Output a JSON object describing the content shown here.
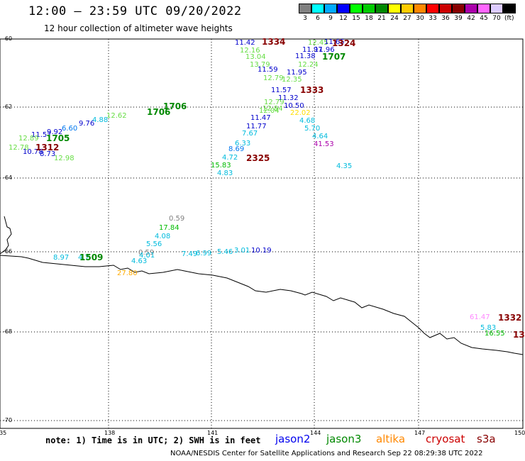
{
  "header": {
    "title": "12:00 – 23:59 UTC 09/20/2022",
    "subtitle": "12 hour collection of altimeter wave heights"
  },
  "legend": {
    "unit": "(ft)",
    "items": [
      {
        "label": "3",
        "color": "#808080"
      },
      {
        "label": "6",
        "color": "#00ffff"
      },
      {
        "label": "9",
        "color": "#00aaff"
      },
      {
        "label": "12",
        "color": "#0000ff"
      },
      {
        "label": "15",
        "color": "#00ff00"
      },
      {
        "label": "18",
        "color": "#00cc00"
      },
      {
        "label": "21",
        "color": "#008800"
      },
      {
        "label": "24",
        "color": "#ffff00"
      },
      {
        "label": "27",
        "color": "#ffcc00"
      },
      {
        "label": "30",
        "color": "#ff8800"
      },
      {
        "label": "33",
        "color": "#ff0000"
      },
      {
        "label": "36",
        "color": "#cc0000"
      },
      {
        "label": "39",
        "color": "#880000"
      },
      {
        "label": "42",
        "color": "#aa00aa"
      },
      {
        "label": "45",
        "color": "#ff66ff"
      },
      {
        "label": "70",
        "color": "#ddccff"
      },
      {
        "label": "",
        "color": "#000000"
      }
    ]
  },
  "map": {
    "lat_labels": [
      "-60",
      "-62",
      "-64",
      "-66",
      "-68",
      "-70"
    ],
    "lon_labels": [
      "135",
      "138",
      "141",
      "144",
      "147",
      "150"
    ],
    "wave_heights": [
      {
        "t": "11.42",
        "c": "#0000cc"
      },
      {
        "t": "12.16",
        "c": "#66dd44"
      },
      {
        "t": "13.04",
        "c": "#66dd44"
      },
      {
        "t": "13.79",
        "c": "#66dd44"
      },
      {
        "t": "11.59",
        "c": "#0000cc"
      },
      {
        "t": "12.79",
        "c": "#66dd44"
      },
      {
        "t": "12.35",
        "c": "#66dd44"
      },
      {
        "t": "11.95",
        "c": "#0000cc"
      },
      {
        "t": "11.38",
        "c": "#0000cc"
      },
      {
        "t": "11.97",
        "c": "#0000cc"
      },
      {
        "t": "12.24",
        "c": "#66dd44"
      },
      {
        "t": "12.45",
        "c": "#66dd44"
      },
      {
        "t": "11.96",
        "c": "#0000cc"
      },
      {
        "t": "11.65",
        "c": "#0000cc"
      },
      {
        "t": "12.84",
        "c": "#66dd44"
      },
      {
        "t": "11.57",
        "c": "#0000cc"
      },
      {
        "t": "11.32",
        "c": "#0000cc"
      },
      {
        "t": "12.79",
        "c": "#66dd44"
      },
      {
        "t": "10.50",
        "c": "#0000cc"
      },
      {
        "t": "12.04",
        "c": "#66dd44"
      },
      {
        "t": "22.02",
        "c": "#ffdd00"
      },
      {
        "t": "11.47",
        "c": "#0000cc"
      },
      {
        "t": "11.77",
        "c": "#0000cc"
      },
      {
        "t": "4.68",
        "c": "#00bbdd"
      },
      {
        "t": "5.70",
        "c": "#00bbdd"
      },
      {
        "t": "7.67",
        "c": "#00bbdd"
      },
      {
        "t": "4.64",
        "c": "#00bbdd"
      },
      {
        "t": "6.33",
        "c": "#00bbdd"
      },
      {
        "t": "41.53",
        "c": "#aa00aa"
      },
      {
        "t": "8.69",
        "c": "#0077ee"
      },
      {
        "t": "4.72",
        "c": "#00bbdd"
      },
      {
        "t": "15.83",
        "c": "#00bb00"
      },
      {
        "t": "4.83",
        "c": "#00bbdd"
      },
      {
        "t": "4.35",
        "c": "#00bbdd"
      },
      {
        "t": "12.62",
        "c": "#66dd44"
      },
      {
        "t": "9.76",
        "c": "#0000cc"
      },
      {
        "t": "4.88",
        "c": "#00bbdd"
      },
      {
        "t": "6.60",
        "c": "#0077ee"
      },
      {
        "t": "9.92",
        "c": "#0000cc"
      },
      {
        "t": "11.57",
        "c": "#0000cc"
      },
      {
        "t": "12.89",
        "c": "#66dd44"
      },
      {
        "t": "12.78",
        "c": "#66dd44"
      },
      {
        "t": "10.78",
        "c": "#0000cc"
      },
      {
        "t": "8.73",
        "c": "#0000cc"
      },
      {
        "t": "12.98",
        "c": "#66dd44"
      },
      {
        "t": "0.59",
        "c": "#808080"
      },
      {
        "t": "17.84",
        "c": "#00bb00"
      },
      {
        "t": "4.08",
        "c": "#00bbdd"
      },
      {
        "t": "5.56",
        "c": "#00bbdd"
      },
      {
        "t": "0.59",
        "c": "#808080"
      },
      {
        "t": "4.01",
        "c": "#00bbdd"
      },
      {
        "t": "4.63",
        "c": "#00bbdd"
      },
      {
        "t": "7.49",
        "c": "#00bbdd"
      },
      {
        "t": "6.99",
        "c": "#00bbdd"
      },
      {
        "t": "5.46",
        "c": "#00bbdd"
      },
      {
        "t": "3.01",
        "c": "#00bbdd"
      },
      {
        "t": "10.19",
        "c": "#0000cc"
      },
      {
        "t": "8.97",
        "c": "#00bbdd"
      },
      {
        "t": "4.7",
        "c": "#00bbdd"
      },
      {
        "t": "27.80",
        "c": "#ffaa00"
      },
      {
        "t": "61.47",
        "c": "#ff88ff"
      },
      {
        "t": "5.83",
        "c": "#00bbdd"
      },
      {
        "t": "16.55",
        "c": "#00bb00"
      }
    ],
    "pass_times": [
      {
        "t": "1334",
        "c": "#880000"
      },
      {
        "t": "1324",
        "c": "#880000"
      },
      {
        "t": "1707",
        "c": "#008800"
      },
      {
        "t": "1333",
        "c": "#880000"
      },
      {
        "t": "1706",
        "c": "#008800"
      },
      {
        "t": "1706",
        "c": "#008800"
      },
      {
        "t": "1705",
        "c": "#008800"
      },
      {
        "t": "1312",
        "c": "#880000"
      },
      {
        "t": "2325",
        "c": "#880000"
      },
      {
        "t": "1509",
        "c": "#008800"
      },
      {
        "t": "1332",
        "c": "#880000"
      },
      {
        "t": "13",
        "c": "#880000"
      }
    ]
  },
  "footer": {
    "note": "note: 1) Time is in UTC; 2) SWH is in feet",
    "satellites": [
      {
        "name": "jason2",
        "color": "#0000ee"
      },
      {
        "name": "jason3",
        "color": "#008800"
      },
      {
        "name": "altika",
        "color": "#ff8800"
      },
      {
        "name": "cryosat",
        "color": "#cc0000"
      },
      {
        "name": "s3a",
        "color": "#880000"
      }
    ],
    "credit": "NOAA/NESDIS Center for Satellite Applications and Research    Sep 22 08:29:38 UTC 2022"
  }
}
